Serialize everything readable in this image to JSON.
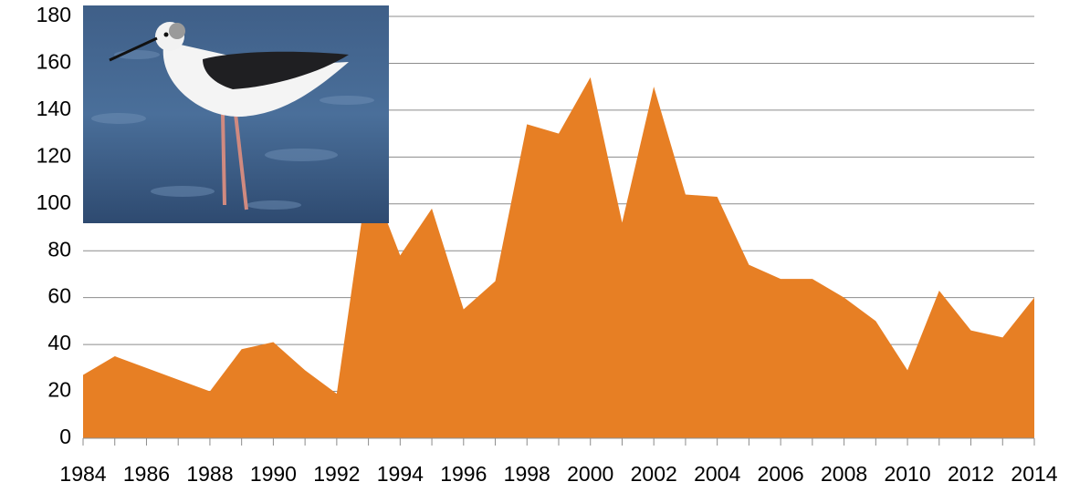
{
  "chart_data": {
    "type": "area",
    "x": [
      1984,
      1985,
      1986,
      1987,
      1988,
      1989,
      1990,
      1991,
      1992,
      1993,
      1994,
      1995,
      1996,
      1997,
      1998,
      1999,
      2000,
      2001,
      2002,
      2003,
      2004,
      2005,
      2006,
      2007,
      2008,
      2009,
      2010,
      2011,
      2012,
      2013,
      2014
    ],
    "values": [
      27,
      35,
      30,
      25,
      20,
      38,
      41,
      29,
      19,
      113,
      78,
      98,
      55,
      67,
      134,
      130,
      154,
      92,
      150,
      104,
      103,
      74,
      68,
      68,
      60,
      50,
      29,
      63,
      46,
      43,
      60
    ],
    "color": "#e77f24",
    "xlim": [
      1984,
      2014
    ],
    "xticks": [
      1984,
      1986,
      1988,
      1990,
      1992,
      1994,
      1996,
      1998,
      2000,
      2002,
      2004,
      2006,
      2008,
      2010,
      2012,
      2014
    ],
    "ylim": [
      0,
      180
    ],
    "yticks": [
      0,
      20,
      40,
      60,
      80,
      100,
      120,
      140,
      160,
      180
    ],
    "grid": true
  }
}
